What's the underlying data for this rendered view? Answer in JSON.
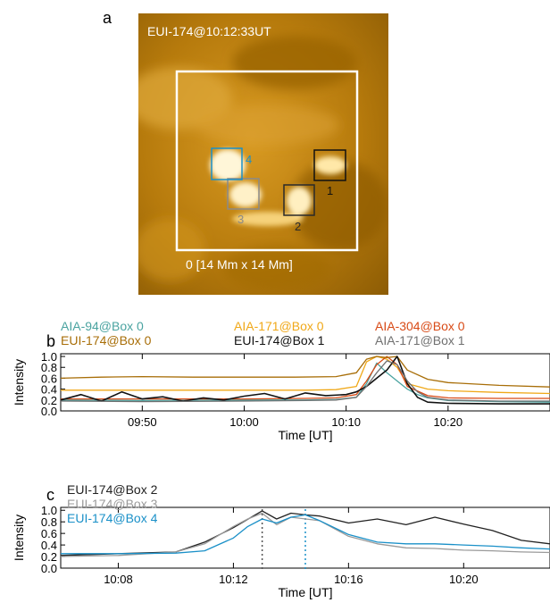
{
  "panel_labels": {
    "a": "a",
    "b": "b",
    "c": "c"
  },
  "image_panel": {
    "title": "EUI-174@10:12:33UT",
    "box0_label": "0  [14 Mm x 14 Mm]",
    "box_labels": [
      "1",
      "2",
      "3",
      "4"
    ],
    "colors": {
      "base": "#c98a10",
      "box0": "#ffffff",
      "box1": "#111111",
      "box2": "#2a2a2a",
      "box3": "#8a8a8a",
      "box4": "#1a90c8"
    }
  },
  "chart_data": [
    {
      "type": "line",
      "xlabel": "Time [UT]",
      "ylabel": "Intensity",
      "xlim": [
        "09:42",
        "10:30"
      ],
      "xticks": [
        "09:50",
        "10:00",
        "10:10",
        "10:20"
      ],
      "ylim": [
        0,
        1.05
      ],
      "yticks": [
        "0.0",
        "0.2",
        "0.4",
        "0.6",
        "0.8",
        "1.0"
      ],
      "grid": false,
      "legend": "top",
      "series": [
        {
          "name": "AIA-94@Box 0",
          "color": "#4aa3a0",
          "x": [
            "09:42",
            "09:50",
            "10:00",
            "10:06",
            "10:09",
            "10:11",
            "10:12",
            "10:13",
            "10:14",
            "10:15",
            "10:16",
            "10:17",
            "10:18",
            "10:20",
            "10:25",
            "10:30"
          ],
          "y": [
            0.2,
            0.19,
            0.2,
            0.2,
            0.21,
            0.25,
            0.5,
            0.88,
            0.7,
            0.55,
            0.4,
            0.3,
            0.24,
            0.19,
            0.17,
            0.16
          ]
        },
        {
          "name": "AIA-171@Box 0",
          "color": "#f0a818",
          "x": [
            "09:42",
            "09:50",
            "10:00",
            "10:06",
            "10:09",
            "10:11",
            "10:12",
            "10:13",
            "10:14",
            "10:15",
            "10:16",
            "10:18",
            "10:20",
            "10:25",
            "10:30"
          ],
          "y": [
            0.38,
            0.38,
            0.38,
            0.38,
            0.39,
            0.45,
            0.9,
            1.0,
            0.95,
            0.8,
            0.5,
            0.4,
            0.37,
            0.34,
            0.32
          ]
        },
        {
          "name": "AIA-304@Box 0",
          "color": "#d84a16",
          "x": [
            "09:42",
            "09:50",
            "10:00",
            "10:06",
            "10:09",
            "10:11",
            "10:12",
            "10:13",
            "10:14",
            "10:15",
            "10:16",
            "10:18",
            "10:20",
            "10:25",
            "10:30"
          ],
          "y": [
            0.22,
            0.22,
            0.22,
            0.23,
            0.24,
            0.3,
            0.55,
            0.85,
            1.0,
            0.85,
            0.45,
            0.28,
            0.24,
            0.23,
            0.23
          ]
        },
        {
          "name": "EUI-174@Box 0",
          "color": "#a86e08",
          "x": [
            "09:42",
            "09:46",
            "09:50",
            "09:55",
            "10:00",
            "10:05",
            "10:09",
            "10:11",
            "10:12",
            "10:13",
            "10:14",
            "10:15",
            "10:16",
            "10:18",
            "10:20",
            "10:25",
            "10:30"
          ],
          "y": [
            0.6,
            0.62,
            0.63,
            0.62,
            0.62,
            0.62,
            0.63,
            0.7,
            0.95,
            1.0,
            0.98,
            1.0,
            0.75,
            0.58,
            0.52,
            0.47,
            0.44
          ]
        },
        {
          "name": "EUI-174@Box 1",
          "color": "#111111",
          "x": [
            "09:42",
            "09:44",
            "09:46",
            "09:48",
            "09:50",
            "09:52",
            "09:54",
            "09:56",
            "09:58",
            "10:00",
            "10:02",
            "10:04",
            "10:06",
            "10:08",
            "10:10",
            "10:11",
            "10:12",
            "10:13",
            "10:14",
            "10:15",
            "10:16",
            "10:17",
            "10:18",
            "10:20",
            "10:25",
            "10:30"
          ],
          "y": [
            0.2,
            0.3,
            0.18,
            0.35,
            0.22,
            0.26,
            0.18,
            0.24,
            0.2,
            0.27,
            0.32,
            0.22,
            0.33,
            0.28,
            0.3,
            0.35,
            0.45,
            0.6,
            0.75,
            1.0,
            0.5,
            0.25,
            0.16,
            0.14,
            0.13,
            0.13
          ]
        },
        {
          "name": "AIA-171@Box 1",
          "color": "#707070",
          "x": [
            "09:42",
            "09:50",
            "10:00",
            "10:06",
            "10:09",
            "10:11",
            "10:12",
            "10:13",
            "10:14",
            "10:15",
            "10:16",
            "10:17",
            "10:18",
            "10:20",
            "10:25",
            "10:30"
          ],
          "y": [
            0.18,
            0.17,
            0.18,
            0.19,
            0.2,
            0.25,
            0.45,
            0.7,
            0.92,
            0.85,
            0.55,
            0.35,
            0.25,
            0.2,
            0.18,
            0.18
          ]
        }
      ]
    },
    {
      "type": "line",
      "xlabel": "Time [UT]",
      "ylabel": "Intensity",
      "xlim": [
        "10:06",
        "10:23"
      ],
      "xticks": [
        "10:08",
        "10:12",
        "10:16",
        "10:20"
      ],
      "ylim": [
        0,
        1.05
      ],
      "yticks": [
        "0.0",
        "0.2",
        "0.4",
        "0.6",
        "0.8",
        "1.0"
      ],
      "grid": false,
      "legend": "top-left",
      "markers": [
        {
          "x": "10:13",
          "color": "#555555"
        },
        {
          "x": "10:14.5",
          "color": "#1a90c8"
        }
      ],
      "series": [
        {
          "name": "EUI-174@Box 2",
          "color": "#222222",
          "x": [
            "10:06",
            "10:08",
            "10:10",
            "10:11",
            "10:12",
            "10:13",
            "10:13.5",
            "10:14",
            "10:14.5",
            "10:15",
            "10:16",
            "10:17",
            "10:18",
            "10:19",
            "10:20",
            "10:21",
            "10:22",
            "10:23"
          ],
          "y": [
            0.22,
            0.25,
            0.28,
            0.45,
            0.7,
            0.99,
            0.85,
            0.95,
            0.92,
            0.9,
            0.78,
            0.85,
            0.75,
            0.88,
            0.76,
            0.65,
            0.48,
            0.42
          ]
        },
        {
          "name": "EUI-174@Box 3",
          "color": "#9a9a9a",
          "x": [
            "10:06",
            "10:08",
            "10:10",
            "10:11",
            "10:12",
            "10:12.5",
            "10:13",
            "10:13.5",
            "10:14",
            "10:15",
            "10:16",
            "10:17",
            "10:18",
            "10:19",
            "10:20",
            "10:21",
            "10:22",
            "10:23"
          ],
          "y": [
            0.2,
            0.22,
            0.28,
            0.42,
            0.72,
            0.85,
            0.95,
            0.75,
            0.88,
            0.82,
            0.55,
            0.42,
            0.35,
            0.34,
            0.31,
            0.3,
            0.28,
            0.27
          ]
        },
        {
          "name": "EUI-174@Box 4",
          "color": "#1a90c8",
          "x": [
            "10:06",
            "10:08",
            "10:10",
            "10:11",
            "10:12",
            "10:12.5",
            "10:13",
            "10:13.5",
            "10:14",
            "10:14.5",
            "10:15",
            "10:16",
            "10:17",
            "10:18",
            "10:19",
            "10:20",
            "10:21",
            "10:22",
            "10:23"
          ],
          "y": [
            0.25,
            0.25,
            0.26,
            0.3,
            0.52,
            0.72,
            0.85,
            0.78,
            0.88,
            0.92,
            0.82,
            0.58,
            0.45,
            0.42,
            0.42,
            0.4,
            0.38,
            0.35,
            0.33
          ]
        }
      ]
    }
  ]
}
